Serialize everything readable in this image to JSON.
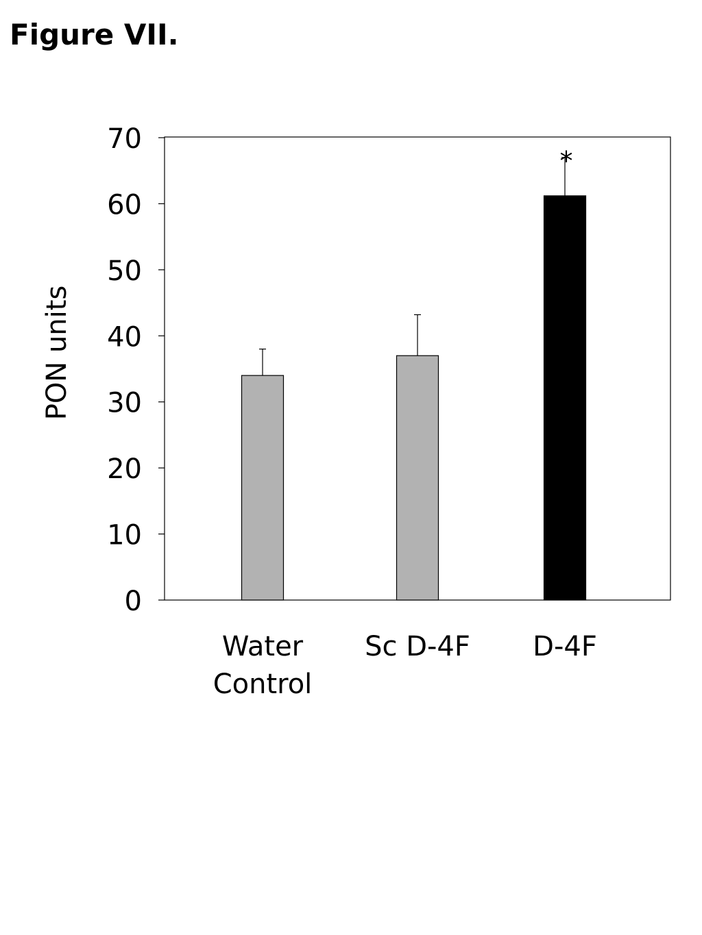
{
  "figure_label": "Figure VII.",
  "chart_data": {
    "type": "bar",
    "categories": [
      [
        "Water",
        "Control"
      ],
      [
        "Sc D-4F"
      ],
      [
        "D-4F"
      ]
    ],
    "values": [
      34,
      37,
      61.2
    ],
    "error_upper": [
      38,
      43.2,
      67
    ],
    "bar_colors": [
      "#b2b2b2",
      "#b2b2b2",
      "#000000"
    ],
    "significance": [
      "",
      "",
      "*"
    ],
    "ylabel": "PON units",
    "ylim": [
      0,
      70
    ],
    "yticks": [
      0,
      10,
      20,
      30,
      40,
      50,
      60,
      70
    ],
    "grid": false,
    "legend": "none"
  }
}
